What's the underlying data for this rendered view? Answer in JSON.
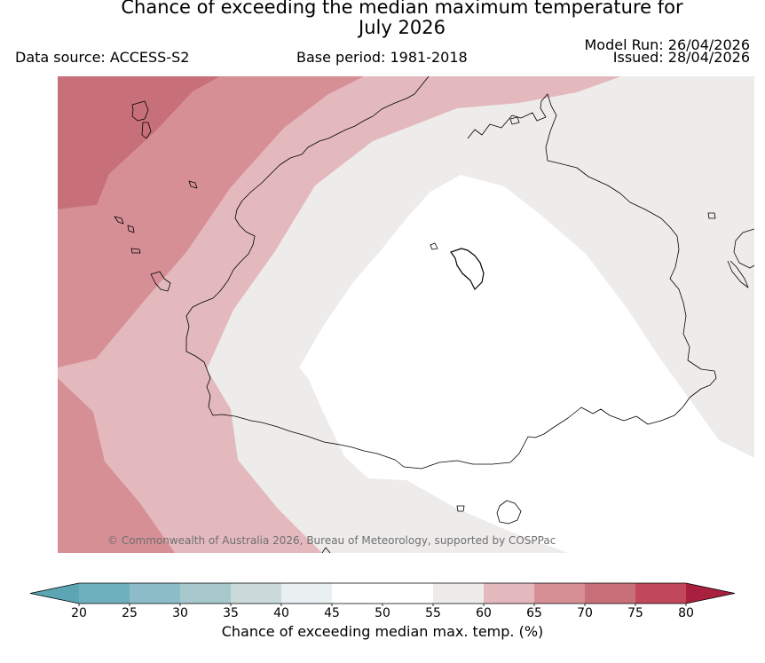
{
  "header": {
    "title_line1": "Chance of exceeding the median maximum temperature for",
    "title_line2": "July 2026",
    "data_source": "Data source: ACCESS-S2",
    "base_period": "Base period: 1981-2018",
    "model_run": "Model Run: 26/04/2026",
    "issued": "Issued: 28/04/2026"
  },
  "map": {
    "copyright": "© Commonwealth of Australia 2026, Bureau of Meteorology, supported by COSPPac",
    "zones": [
      {
        "band": "70-75",
        "color": "#c8707a"
      },
      {
        "band": "65-70",
        "color": "#d78f96"
      },
      {
        "band": "60-65",
        "color": "#e3b9be"
      },
      {
        "band": "55-60",
        "color": "#eeeceb"
      },
      {
        "band": "50-55",
        "color": "#ffffff"
      }
    ]
  },
  "colorbar": {
    "title": "Chance of exceeding median max. temp. (%)",
    "ticks": [
      "20",
      "25",
      "30",
      "35",
      "40",
      "45",
      "50",
      "55",
      "60",
      "65",
      "70",
      "75",
      "80"
    ],
    "bins": [
      {
        "range": "15-20",
        "color": "#5ba5b4"
      },
      {
        "range": "20-25",
        "color": "#6fb0bf"
      },
      {
        "range": "25-30",
        "color": "#8bbcc7"
      },
      {
        "range": "30-35",
        "color": "#a7c8cd"
      },
      {
        "range": "35-40",
        "color": "#cbdadb"
      },
      {
        "range": "40-45",
        "color": "#eaf0f2"
      },
      {
        "range": "45-50",
        "color": "#ffffff"
      },
      {
        "range": "50-55",
        "color": "#ffffff"
      },
      {
        "range": "55-60",
        "color": "#eeeceb"
      },
      {
        "range": "60-65",
        "color": "#e3b9be"
      },
      {
        "range": "65-70",
        "color": "#d78f96"
      },
      {
        "range": "70-75",
        "color": "#c8707a"
      },
      {
        "range": "75-80",
        "color": "#c0485a"
      },
      {
        "range": "80-85",
        "color": "#a8203d"
      }
    ]
  }
}
